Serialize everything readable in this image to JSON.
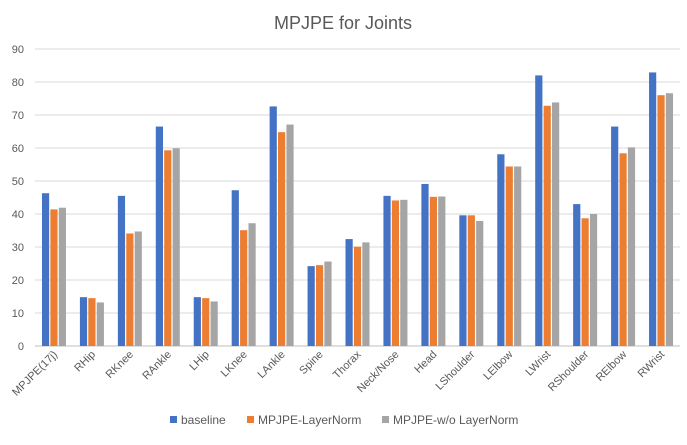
{
  "chart_data": {
    "type": "bar",
    "title": "MPJPE for Joints",
    "xlabel": "",
    "ylabel": "",
    "ylim": [
      0,
      90
    ],
    "yticks": [
      0,
      10,
      20,
      30,
      40,
      50,
      60,
      70,
      80,
      90
    ],
    "grid": "horizontal",
    "legend_position": "bottom",
    "categories": [
      "MPJPE(17j)",
      "RHip",
      "RKnee",
      "RAnkle",
      "LHip",
      "LKnee",
      "LAnkle",
      "Spine",
      "Thorax",
      "Neck/Nose",
      "Head",
      "LShoulder",
      "LElbow",
      "LWrist",
      "RShoulder",
      "RElbow",
      "RWrist"
    ],
    "series": [
      {
        "name": "baseline",
        "color": "#4472c4",
        "values": [
          46.3,
          14.8,
          45.5,
          66.5,
          14.8,
          47.2,
          72.6,
          24.2,
          32.4,
          45.5,
          49.1,
          39.6,
          58.1,
          82.0,
          43.0,
          66.5,
          82.9
        ]
      },
      {
        "name": "MPJPE-LayerNorm",
        "color": "#ed7d31",
        "values": [
          41.4,
          14.5,
          34.1,
          59.3,
          14.5,
          35.1,
          64.8,
          24.5,
          30.1,
          44.1,
          45.2,
          39.6,
          54.4,
          72.8,
          38.7,
          58.4,
          76.0
        ]
      },
      {
        "name": "MPJPE-w/o LayerNorm",
        "color": "#a5a5a5",
        "values": [
          41.9,
          13.2,
          34.7,
          59.9,
          13.5,
          37.2,
          67.1,
          25.6,
          31.4,
          44.3,
          45.3,
          37.9,
          54.4,
          73.8,
          40.0,
          60.2,
          76.6
        ]
      }
    ]
  }
}
